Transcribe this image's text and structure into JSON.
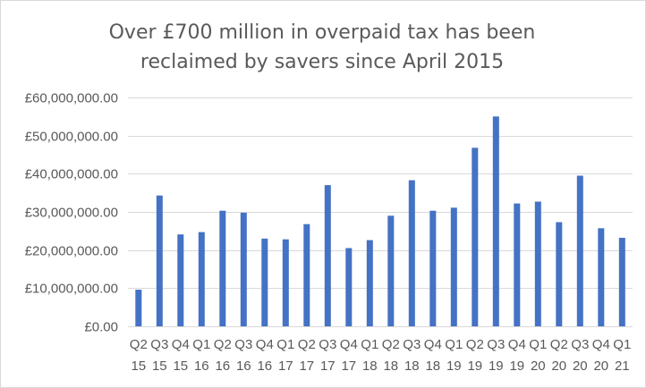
{
  "chart_data": {
    "type": "bar",
    "title_lines": [
      "Over £700 million in overpaid tax has been",
      "reclaimed by savers since April 2015"
    ],
    "xlabel": "",
    "ylabel": "",
    "ylim": [
      0,
      60000000
    ],
    "yticks": [
      0,
      10000000,
      20000000,
      30000000,
      40000000,
      50000000,
      60000000
    ],
    "ytick_labels": [
      "£0.00",
      "£10,000,000.00",
      "£20,000,000.00",
      "£30,000,000.00",
      "£40,000,000.00",
      "£50,000,000.00",
      "£60,000,000.00"
    ],
    "grid": true,
    "legend": "none",
    "bar_color": "#4472c4",
    "categories": [
      {
        "line1": "Q2",
        "line2": "15"
      },
      {
        "line1": "Q3",
        "line2": "15"
      },
      {
        "line1": "Q4",
        "line2": "15"
      },
      {
        "line1": "Q1",
        "line2": "16"
      },
      {
        "line1": "Q2",
        "line2": "16"
      },
      {
        "line1": "Q3",
        "line2": "16"
      },
      {
        "line1": "Q4",
        "line2": "16"
      },
      {
        "line1": "Q1",
        "line2": "17"
      },
      {
        "line1": "Q2",
        "line2": "17"
      },
      {
        "line1": "Q3",
        "line2": "17"
      },
      {
        "line1": "Q4",
        "line2": "17"
      },
      {
        "line1": "Q1",
        "line2": "18"
      },
      {
        "line1": "Q2",
        "line2": "18"
      },
      {
        "line1": "Q3",
        "line2": "18"
      },
      {
        "line1": "Q4",
        "line2": "18"
      },
      {
        "line1": "Q1",
        "line2": "19"
      },
      {
        "line1": "Q2",
        "line2": "19"
      },
      {
        "line1": "Q3",
        "line2": "19"
      },
      {
        "line1": "Q4",
        "line2": "19"
      },
      {
        "line1": "Q1",
        "line2": "20"
      },
      {
        "line1": "Q2",
        "line2": "20"
      },
      {
        "line1": "Q3",
        "line2": "20"
      },
      {
        "line1": "Q4",
        "line2": "20"
      },
      {
        "line1": "Q1",
        "line2": "21"
      }
    ],
    "values": [
      9600000,
      34300000,
      24100000,
      24700000,
      30300000,
      29800000,
      23000000,
      22800000,
      26800000,
      37000000,
      20500000,
      22600000,
      29000000,
      38300000,
      30300000,
      31100000,
      46800000,
      55000000,
      32200000,
      32700000,
      27300000,
      39500000,
      25700000,
      23200000
    ]
  }
}
